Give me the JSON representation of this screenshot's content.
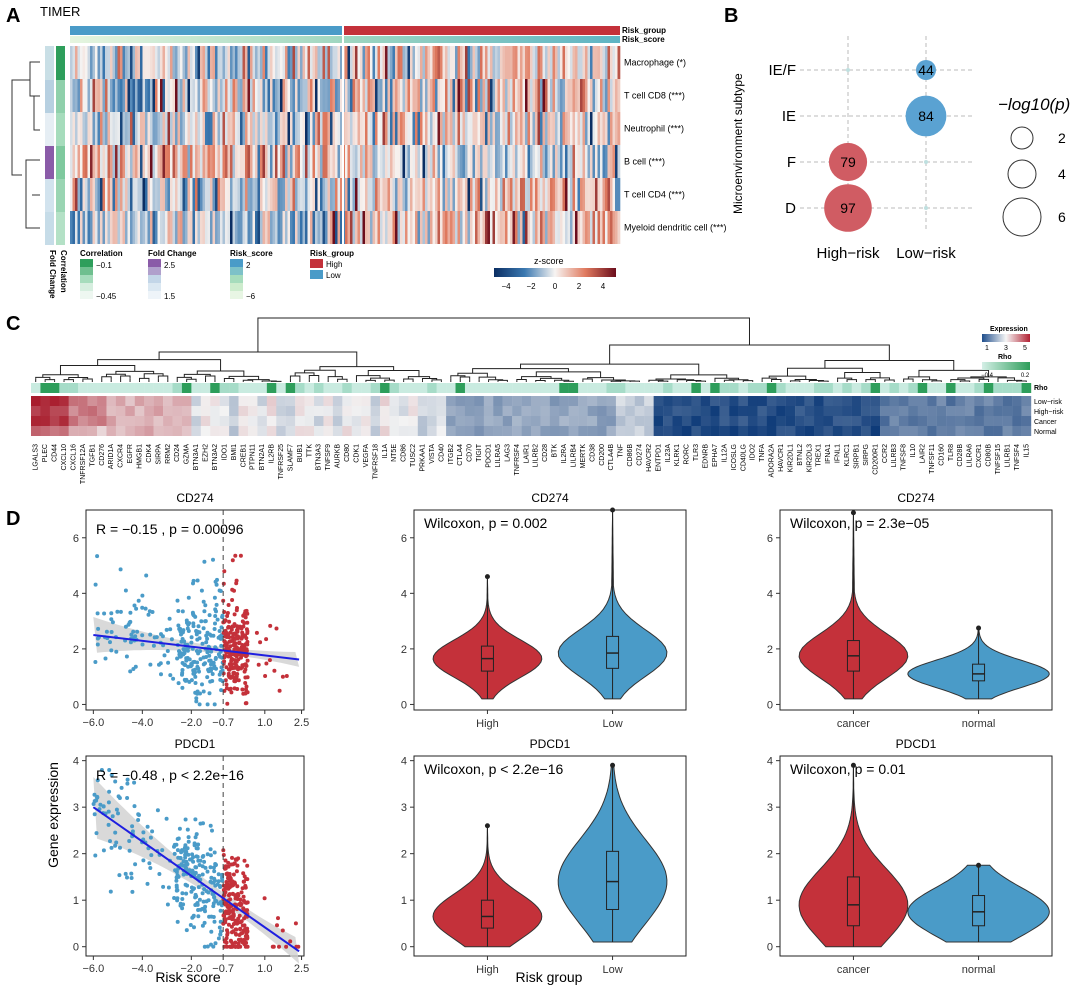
{
  "panels": {
    "a": "A",
    "b": "B",
    "c": "C",
    "d": "D"
  },
  "colors": {
    "high": "#c4313a",
    "low": "#4a9bc8",
    "regression": "#1f1fe0",
    "bubble_high": "#d05c63",
    "bubble_low": "#5aa2d2",
    "corr_dark": "#2e9e5b",
    "fold_dark": "#8a5ba8"
  },
  "chart_data": [
    {
      "type": "heatmap",
      "panel": "A",
      "title": "TIMER",
      "column_annotations": [
        "Risk_group",
        "Risk_score"
      ],
      "rows": [
        {
          "label": "Macrophage",
          "sig": "(*)"
        },
        {
          "label": "T cell CD8",
          "sig": "(***)"
        },
        {
          "label": "Neutrophil",
          "sig": "(***)"
        },
        {
          "label": "B cell",
          "sig": "(***)"
        },
        {
          "label": "T cell CD4",
          "sig": "(***)"
        },
        {
          "label": "Myeloid dendritic cell",
          "sig": "(***)"
        }
      ],
      "row_annotation_titles": [
        "Fold Change",
        "Correlation"
      ],
      "legends": {
        "correlation": {
          "title": "Correlation",
          "ticks": [
            "−0.1",
            "−0.45"
          ]
        },
        "fold_change": {
          "title": "Fold Change",
          "ticks": [
            "2.5",
            "1.5"
          ]
        },
        "risk_score": {
          "title": "Risk_score",
          "ticks": [
            "2",
            "−6"
          ]
        },
        "risk_group": {
          "title": "Risk_group",
          "entries": [
            "High",
            "Low"
          ]
        },
        "zscore": {
          "title": "z-score",
          "ticks": [
            "−4",
            "−2",
            "0",
            "2",
            "4"
          ]
        }
      }
    },
    {
      "type": "scatter",
      "panel": "B",
      "subtype": "bubble",
      "ylabel": "Microenvironment subtype",
      "categories_x": [
        "High−risk",
        "Low−risk"
      ],
      "categories_y": [
        "IE/F",
        "IE",
        "F",
        "D"
      ],
      "points": [
        {
          "x": "Low−risk",
          "y": "IE/F",
          "count": 44
        },
        {
          "x": "Low−risk",
          "y": "IE",
          "count": 84
        },
        {
          "x": "High−risk",
          "y": "F",
          "count": 79
        },
        {
          "x": "High−risk",
          "y": "D",
          "count": 97
        }
      ],
      "size_legend": {
        "title": "−log10(p)",
        "values": [
          2,
          4,
          6
        ]
      }
    },
    {
      "type": "heatmap",
      "panel": "C",
      "rows": [
        "Low−risk",
        "High−risk",
        "Cancer",
        "Normal"
      ],
      "row_annotation": "Rho",
      "genes": [
        "LGALS3",
        "PLEC",
        "CD44",
        "CXCL10",
        "CXCL16",
        "TNFRSF12A",
        "TGFB1",
        "CD276",
        "ARID1A",
        "CXCR4",
        "EGFR",
        "HMGB1",
        "CDK4",
        "SIRPA",
        "RRM2",
        "CD24",
        "GZMA",
        "BTN3A1",
        "EZH2",
        "BTN3A2",
        "IDO1",
        "BMI1",
        "CREB1",
        "PTPN11",
        "BTN2A1",
        "IL2RB",
        "TNFRSF25",
        "SLAMF7",
        "BUB1",
        "TTK",
        "BTN3A3",
        "TNFSF9",
        "AURKB",
        "CD80",
        "CDK1",
        "VEGFA",
        "TNFRSF18",
        "IL1A",
        "NT5E",
        "CD86",
        "TUSC2",
        "PRKAA1",
        "VISTA",
        "CD40",
        "ITGB2",
        "CTLA4",
        "CD70",
        "TIGIT",
        "PDCD1",
        "LILRA5",
        "LAG3",
        "TNFRSF4",
        "LAIR1",
        "LILRB2",
        "CD28",
        "BTK",
        "IL2RA",
        "LILRB4",
        "MERTK",
        "CD38",
        "CD200",
        "CTLA4B",
        "TNF",
        "CD86B",
        "CD274",
        "HAVCR2",
        "ENTPD1",
        "IL23A",
        "KLRK1",
        "RORC",
        "TLR3",
        "EDNRB",
        "EPHA7",
        "IL12A",
        "ICOSLG",
        "CD40LG",
        "IDO2",
        "TNFA",
        "ADORA2A",
        "HAVCR1",
        "KIR2DL1",
        "BTNL2",
        "KIR2DL3",
        "TREX1",
        "IFNA1",
        "IFNL1",
        "KLRC1",
        "SIRPB1",
        "SIRPG",
        "CD200R1",
        "CCR2",
        "LILRB3",
        "TNFSF8",
        "IL10",
        "LAIR2",
        "TNFSF11",
        "CD160",
        "TLR8",
        "CD28B",
        "LILRA6",
        "CXCR1",
        "CD80B",
        "TNFSF15",
        "LILRB1",
        "TNFSF4",
        "IL15"
      ],
      "legends": {
        "expression": {
          "title": "Expression",
          "ticks": [
            "1",
            "3",
            "5"
          ]
        },
        "rho": {
          "title": "Rho",
          "ticks": [
            "−0.4",
            "0.2"
          ]
        }
      }
    },
    {
      "type": "scatter",
      "panel": "D",
      "title": "CD274",
      "annotation": "R = −0.15 , p = 0.00096",
      "xlabel": "",
      "ylabel": "Gene expression",
      "x_ticks": [
        "−6.0",
        "−4.0",
        "−2.0",
        "−0.7",
        "1.0",
        "2.5"
      ],
      "xlim": [
        -6.3,
        2.6
      ],
      "ylim": [
        -0.2,
        7
      ],
      "y_ticks": [
        0,
        2,
        4,
        6
      ],
      "cutoff": -0.7,
      "regression": {
        "x": [
          -6.0,
          2.4
        ],
        "y": [
          2.5,
          1.62
        ]
      }
    },
    {
      "type": "bar",
      "subtype": "violin",
      "panel": "D",
      "title": "CD274",
      "annotation": "Wilcoxon, p = 0.002",
      "categories": [
        "High",
        "Low"
      ],
      "medians": [
        1.65,
        1.85
      ],
      "q1": [
        1.2,
        1.3
      ],
      "q3": [
        2.1,
        2.45
      ],
      "max": [
        4.6,
        7.0
      ],
      "ylim": [
        -0.2,
        7
      ],
      "y_ticks": [
        0,
        2,
        4,
        6
      ]
    },
    {
      "type": "bar",
      "subtype": "violin",
      "panel": "D",
      "title": "CD274",
      "annotation": "Wilcoxon, p = 2.3e−05",
      "categories": [
        "cancer",
        "normal"
      ],
      "medians": [
        1.75,
        1.1
      ],
      "q1": [
        1.2,
        0.85
      ],
      "q3": [
        2.3,
        1.45
      ],
      "max": [
        6.9,
        2.75
      ],
      "ylim": [
        -0.2,
        7
      ],
      "y_ticks": [
        0,
        2,
        4,
        6
      ]
    },
    {
      "type": "scatter",
      "panel": "D",
      "title": "PDCD1",
      "annotation": "R = −0.48 , p < 2.2e−16",
      "xlabel": "Risk score",
      "ylabel": "Gene expression",
      "x_ticks": [
        "−6.0",
        "−4.0",
        "−2.0",
        "−0.7",
        "1.0",
        "2.5"
      ],
      "xlim": [
        -6.3,
        2.6
      ],
      "ylim": [
        -0.2,
        4.1
      ],
      "y_ticks": [
        0,
        1,
        2,
        3,
        4
      ],
      "cutoff": -0.7,
      "regression": {
        "x": [
          -6.0,
          2.4
        ],
        "y": [
          3.0,
          -0.1
        ]
      }
    },
    {
      "type": "bar",
      "subtype": "violin",
      "panel": "D",
      "title": "PDCD1",
      "annotation": "Wilcoxon, p < 2.2e−16",
      "xlabel": "Risk group",
      "categories": [
        "High",
        "Low"
      ],
      "medians": [
        0.65,
        1.4
      ],
      "q1": [
        0.4,
        0.8
      ],
      "q3": [
        1.0,
        2.05
      ],
      "max": [
        2.6,
        3.9
      ],
      "ylim": [
        -0.2,
        4.1
      ],
      "y_ticks": [
        0,
        1,
        2,
        3,
        4
      ]
    },
    {
      "type": "bar",
      "subtype": "violin",
      "panel": "D",
      "title": "PDCD1",
      "annotation": "Wilcoxon, p = 0.01",
      "categories": [
        "cancer",
        "normal"
      ],
      "medians": [
        0.9,
        0.75
      ],
      "q1": [
        0.45,
        0.45
      ],
      "q3": [
        1.5,
        1.1
      ],
      "max": [
        3.9,
        1.75
      ],
      "ylim": [
        -0.2,
        4.1
      ],
      "y_ticks": [
        0,
        1,
        2,
        3,
        4
      ]
    }
  ]
}
